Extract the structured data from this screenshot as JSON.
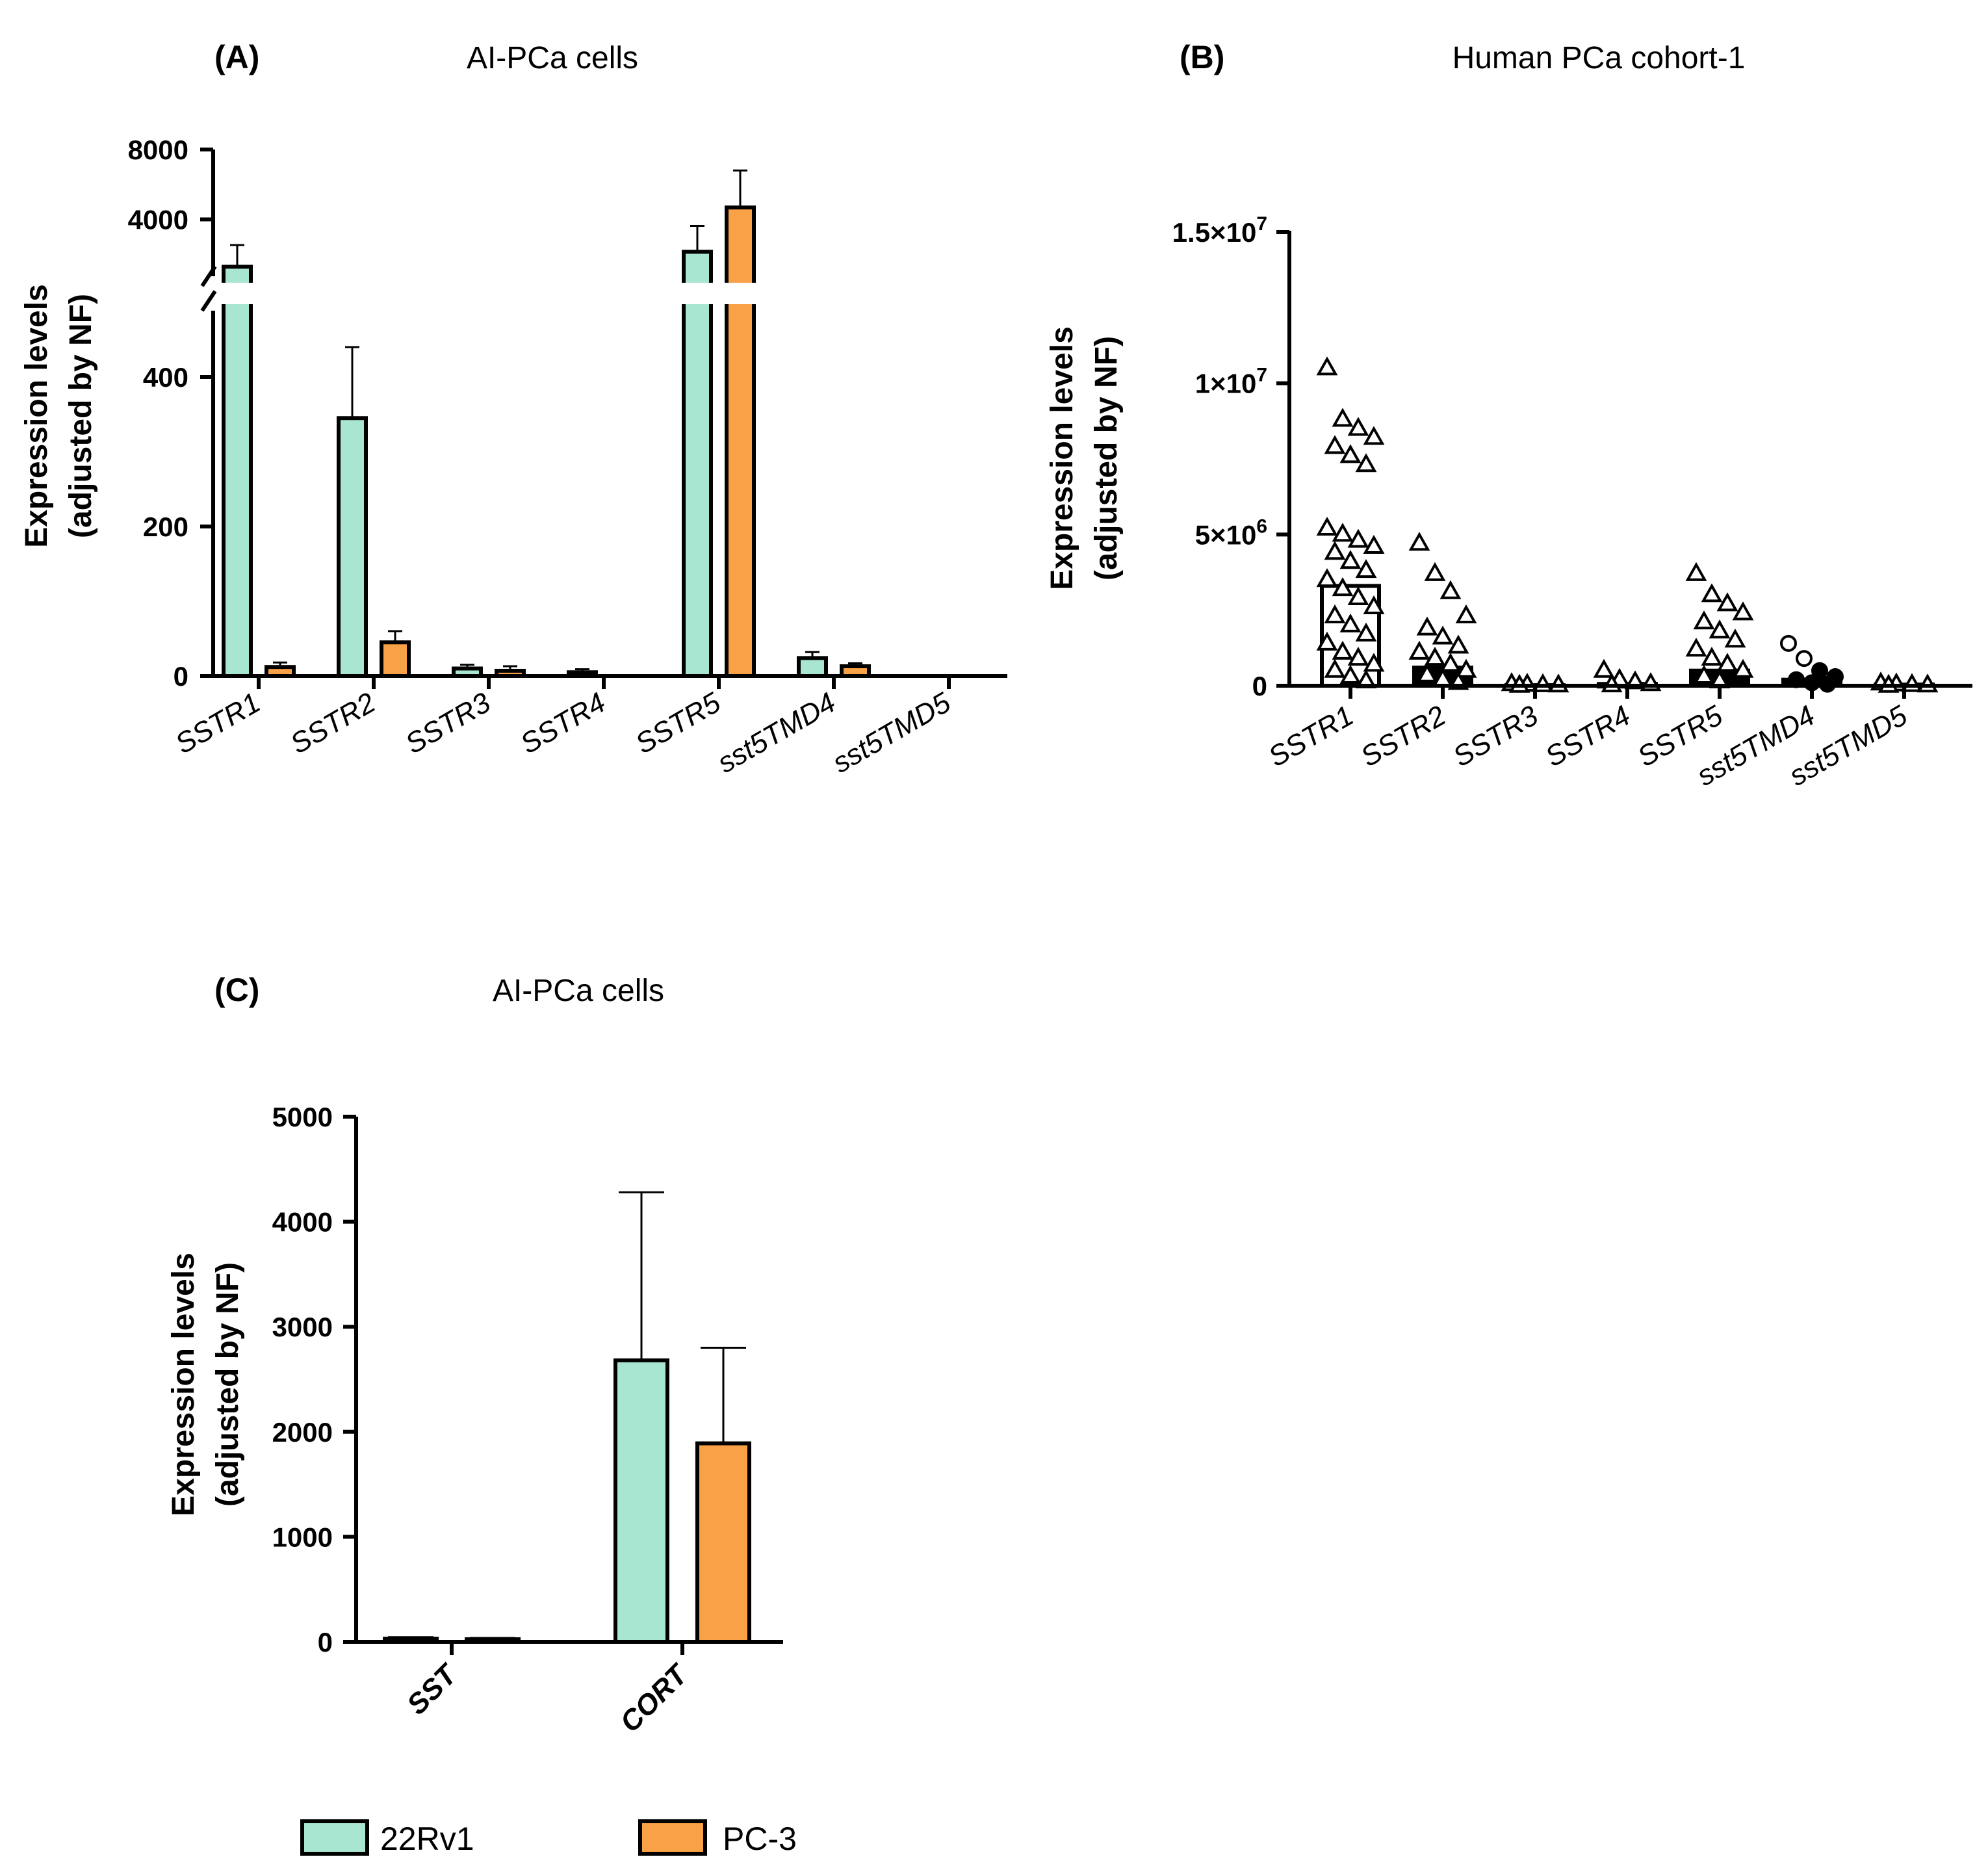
{
  "colors": {
    "22Rv1": "#a8e6d2",
    "PC-3": "#f8a147"
  },
  "legend": [
    {
      "label": "22Rv1",
      "color": "#a8e6d2"
    },
    {
      "label": "PC-3",
      "color": "#f8a147"
    }
  ],
  "chart_data": [
    {
      "panel": "(A)",
      "type": "bar",
      "title": "AI-PCa cells",
      "ylabel_line1": "Expression levels",
      "ylabel_line2": "(adjusted by NF)",
      "y_axis_break": true,
      "lower_segment_ylim": [
        0,
        500
      ],
      "lower_segment_ticks": [
        "0",
        "200",
        "400"
      ],
      "upper_segment_ylim": [
        2000,
        8000
      ],
      "upper_segment_ticks": [
        "4000",
        "8000"
      ],
      "categories": [
        "SSTR1",
        "SSTR2",
        "SSTR3",
        "SSTR4",
        "SSTR5",
        "sst5TMD4",
        "sst5TMD5"
      ],
      "series": [
        {
          "name": "22Rv1",
          "values": [
            2500,
            345,
            10,
            5,
            2900,
            24,
            0
          ],
          "errors": [
            600,
            95,
            5,
            4,
            850,
            8,
            0
          ]
        },
        {
          "name": "PC-3",
          "values": [
            12,
            45,
            7,
            0,
            4500,
            13,
            0
          ],
          "errors": [
            6,
            15,
            6,
            0,
            2000,
            4,
            0
          ]
        }
      ]
    },
    {
      "panel": "(B)",
      "type": "scatter",
      "title": "Human PCa cohort-1",
      "ylabel_line1": "Expression levels",
      "ylabel_line2": "(adjusted by NF)",
      "ylim": [
        0,
        15000000
      ],
      "ticks": [
        {
          "value": 0,
          "base": "0",
          "exp": ""
        },
        {
          "value": 5000000,
          "base": "5×10",
          "exp": "6"
        },
        {
          "value": 10000000,
          "base": "1×10",
          "exp": "7"
        },
        {
          "value": 15000000,
          "base": "1.5×10",
          "exp": "7"
        }
      ],
      "categories": [
        "SSTR1",
        "SSTR2",
        "SSTR3",
        "SSTR4",
        "SSTR5",
        "sst5TMD4",
        "sst5TMD5"
      ],
      "means": [
        3300000,
        600000,
        20000,
        60000,
        500000,
        200000,
        40000
      ],
      "points": [
        [
          10500000,
          8800000,
          8500000,
          8200000,
          7900000,
          7600000,
          7300000,
          5200000,
          5000000,
          4800000,
          4600000,
          4400000,
          4100000,
          3800000,
          3500000,
          3200000,
          2900000,
          2600000,
          2300000,
          2000000,
          1700000,
          1400000,
          1100000,
          900000,
          700000,
          500000,
          300000,
          150000
        ],
        [
          4700000,
          3700000,
          3100000,
          2300000,
          1900000,
          1600000,
          1300000,
          1100000,
          900000,
          700000,
          500000,
          350000,
          200000,
          100000
        ],
        [
          60000,
          40000,
          25000,
          15000,
          5000
        ],
        [
          500000,
          200000,
          120000,
          60000,
          20000
        ],
        [
          3700000,
          3000000,
          2700000,
          2400000,
          2100000,
          1800000,
          1500000,
          1200000,
          900000,
          700000,
          500000,
          300000,
          150000
        ],
        [
          1400000,
          900000,
          500000,
          300000,
          200000,
          100000,
          50000
        ],
        [
          80000,
          50000,
          30000,
          15000,
          5000
        ]
      ]
    },
    {
      "panel": "(C)",
      "type": "bar",
      "title": "AI-PCa cells",
      "ylabel_line1": "Expression levels",
      "ylabel_line2": "(adjusted by NF)",
      "ylim": [
        0,
        5000
      ],
      "ticks": [
        "0",
        "1000",
        "2000",
        "3000",
        "4000",
        "5000"
      ],
      "categories": [
        "SST",
        "CORT"
      ],
      "series": [
        {
          "name": "22Rv1",
          "values": [
            30,
            2680
          ],
          "errors": [
            15,
            1600
          ]
        },
        {
          "name": "PC-3",
          "values": [
            25,
            1890
          ],
          "errors": [
            12,
            910
          ]
        }
      ]
    }
  ]
}
